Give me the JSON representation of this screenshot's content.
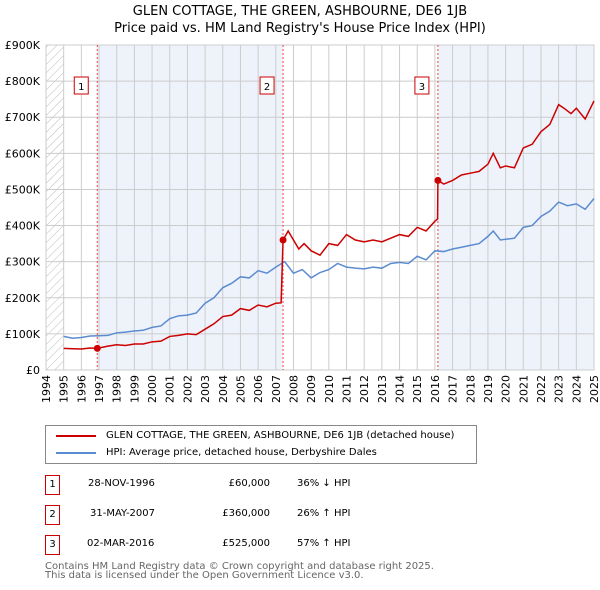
{
  "chart_data": {
    "type": "line",
    "title": "GLEN COTTAGE, THE GREEN, ASHBOURNE, DE6 1JB",
    "subtitle": "Price paid vs. HM Land Registry's House Price Index (HPI)",
    "xlim": [
      1994,
      2025
    ],
    "ylim": [
      0,
      900000
    ],
    "x_ticks": [
      "1994",
      "1995",
      "1996",
      "1997",
      "1998",
      "1999",
      "2000",
      "2001",
      "2002",
      "2003",
      "2004",
      "2005",
      "2006",
      "2007",
      "2008",
      "2009",
      "2010",
      "2011",
      "2012",
      "2013",
      "2014",
      "2015",
      "2016",
      "2017",
      "2018",
      "2019",
      "2020",
      "2021",
      "2022",
      "2023",
      "2024",
      "2025"
    ],
    "y_ticks": [
      {
        "v": 0,
        "l": "£0"
      },
      {
        "v": 100000,
        "l": "£100K"
      },
      {
        "v": 200000,
        "l": "£200K"
      },
      {
        "v": 300000,
        "l": "£300K"
      },
      {
        "v": 400000,
        "l": "£400K"
      },
      {
        "v": 500000,
        "l": "£500K"
      },
      {
        "v": 600000,
        "l": "£600K"
      },
      {
        "v": 700000,
        "l": "£700K"
      },
      {
        "v": 800000,
        "l": "£800K"
      },
      {
        "v": 900000,
        "l": "£900K"
      }
    ],
    "series": [
      {
        "name": "GLEN COTTAGE, THE GREEN, ASHBOURNE, DE6 1JB (detached house)",
        "color": "#cc0000",
        "x": [
          1995,
          1995.5,
          1996,
          1996.5,
          1996.9,
          1997.5,
          1998,
          1998.5,
          1999,
          1999.5,
          2000,
          2000.5,
          2001,
          2001.5,
          2002,
          2002.5,
          2003,
          2003.5,
          2004,
          2004.5,
          2005,
          2005.5,
          2006,
          2006.5,
          2007,
          2007.3,
          2007.41,
          2007.7,
          2008,
          2008.3,
          2008.6,
          2009,
          2009.5,
          2010,
          2010.5,
          2011,
          2011.5,
          2012,
          2012.5,
          2013,
          2013.5,
          2014,
          2014.5,
          2015,
          2015.5,
          2016,
          2016.15,
          2016.17,
          2016.5,
          2017,
          2017.5,
          2018,
          2018.5,
          2019,
          2019.3,
          2019.7,
          2020,
          2020.5,
          2021,
          2021.5,
          2022,
          2022.5,
          2023,
          2023.3,
          2023.7,
          2024,
          2024.5,
          2025
        ],
        "y": [
          60000,
          59000,
          58000,
          61000,
          60000,
          66000,
          70000,
          68000,
          72000,
          72000,
          78000,
          80000,
          93000,
          96000,
          100000,
          98000,
          113000,
          128000,
          148000,
          152000,
          170000,
          165000,
          180000,
          175000,
          185000,
          186000,
          360000,
          385000,
          360000,
          335000,
          350000,
          330000,
          318000,
          350000,
          345000,
          375000,
          360000,
          355000,
          360000,
          355000,
          365000,
          375000,
          370000,
          395000,
          385000,
          412000,
          418000,
          525000,
          515000,
          525000,
          540000,
          545000,
          550000,
          570000,
          600000,
          560000,
          565000,
          560000,
          615000,
          625000,
          660000,
          680000,
          735000,
          725000,
          710000,
          725000,
          695000,
          745000
        ]
      },
      {
        "name": "HPI: Average price, detached house, Derbyshire Dales",
        "color": "#5b8bd0",
        "x": [
          1995,
          1995.5,
          1996,
          1996.5,
          1997,
          1997.5,
          1998,
          1998.5,
          1999,
          1999.5,
          2000,
          2000.5,
          2001,
          2001.5,
          2002,
          2002.5,
          2003,
          2003.5,
          2004,
          2004.5,
          2005,
          2005.5,
          2006,
          2006.5,
          2007,
          2007.5,
          2008,
          2008.5,
          2009,
          2009.5,
          2010,
          2010.5,
          2011,
          2011.5,
          2012,
          2012.5,
          2013,
          2013.5,
          2014,
          2014.5,
          2015,
          2015.5,
          2016,
          2016.5,
          2017,
          2017.5,
          2018,
          2018.5,
          2019,
          2019.3,
          2019.7,
          2020,
          2020.5,
          2021,
          2021.5,
          2022,
          2022.5,
          2023,
          2023.5,
          2024,
          2024.5,
          2025
        ],
        "y": [
          93000,
          88000,
          90000,
          94000,
          95000,
          96000,
          103000,
          105000,
          108000,
          110000,
          118000,
          122000,
          142000,
          150000,
          152000,
          158000,
          185000,
          200000,
          228000,
          240000,
          258000,
          255000,
          275000,
          268000,
          285000,
          300000,
          268000,
          278000,
          255000,
          270000,
          278000,
          295000,
          285000,
          282000,
          280000,
          285000,
          282000,
          295000,
          298000,
          295000,
          315000,
          305000,
          330000,
          328000,
          335000,
          340000,
          345000,
          350000,
          370000,
          385000,
          360000,
          362000,
          365000,
          395000,
          400000,
          425000,
          440000,
          465000,
          455000,
          460000,
          445000,
          475000
        ]
      }
    ],
    "sales": [
      {
        "num": "1",
        "x": 1996.9,
        "y": 60000,
        "date": "28-NOV-1996",
        "price": "£60,000",
        "hpi": "36% ↓ HPI"
      },
      {
        "num": "2",
        "x": 2007.41,
        "y": 360000,
        "date": "31-MAY-2007",
        "price": "£360,000",
        "hpi": "26% ↑ HPI"
      },
      {
        "num": "3",
        "x": 2016.17,
        "y": 525000,
        "date": "02-MAR-2016",
        "price": "£525,000",
        "hpi": "57% ↑ HPI"
      }
    ],
    "footer": [
      "Contains HM Land Registry data © Crown copyright and database right 2025.",
      "This data is licensed under the Open Government Licence v3.0."
    ]
  }
}
